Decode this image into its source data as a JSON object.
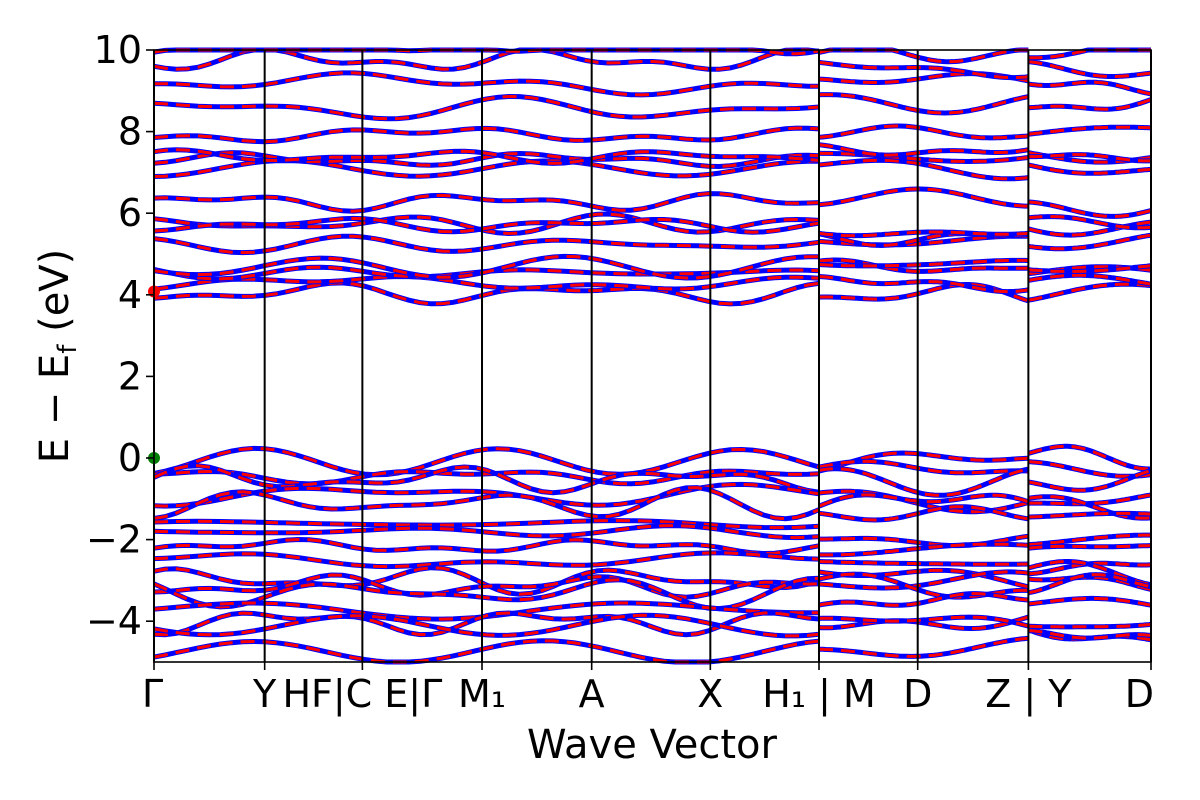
{
  "chart_data": {
    "type": "line",
    "xlabel": "Wave Vector",
    "ylabel": "E − E",
    "ylabel_sub": "f",
    "ylabel_unit": " (eV)",
    "ylim": [
      -5,
      10
    ],
    "yticks": [
      -4,
      -2,
      0,
      2,
      4,
      6,
      8,
      10
    ],
    "ytick_labels": [
      "−4",
      "−2",
      "0",
      "2",
      "4",
      "6",
      "8",
      "10"
    ],
    "xlim": [
      0,
      10
    ],
    "kpoints": [
      {
        "pos": 0.0,
        "label": "Γ"
      },
      {
        "pos": 1.11,
        "label": "Y"
      },
      {
        "pos": 2.09,
        "label": "HF|C E|Γ",
        "overlap": true
      },
      {
        "pos": 3.29,
        "label": "M₁",
        "overlap": true
      },
      {
        "pos": 4.39,
        "label": "A"
      },
      {
        "pos": 5.58,
        "label": "X"
      },
      {
        "pos": 6.67,
        "label": "H₁ | M"
      },
      {
        "pos": 7.66,
        "label": "D"
      },
      {
        "pos": 8.77,
        "label": "Z | Y"
      },
      {
        "pos": 10.0,
        "label": "D"
      }
    ],
    "segment_breaks": [
      6.67,
      8.77
    ],
    "series": [
      {
        "name": "",
        "color": "#0000ff",
        "style": "solid"
      },
      {
        "name": "",
        "color": "#ff0000",
        "style": "dashed"
      }
    ],
    "conduction_band_energies": [
      4.1,
      4.2,
      4.6,
      4.8,
      5.3,
      5.6,
      5.7,
      6.3,
      7.1,
      7.3,
      7.5,
      8.0,
      8.7,
      9.2,
      9.6,
      10.0
    ],
    "valence_band_energies": [
      0.0,
      -0.3,
      -0.5,
      -0.9,
      -1.2,
      -1.5,
      -1.9,
      -2.1,
      -2.5,
      -2.9,
      -3.0,
      -3.3,
      -3.6,
      -4.0,
      -4.2,
      -4.6
    ],
    "markers": [
      {
        "x": 0.0,
        "y": 4.08,
        "color": "#ff0000"
      },
      {
        "x": 0.0,
        "y": 0.0,
        "color": "#008000"
      }
    ]
  }
}
